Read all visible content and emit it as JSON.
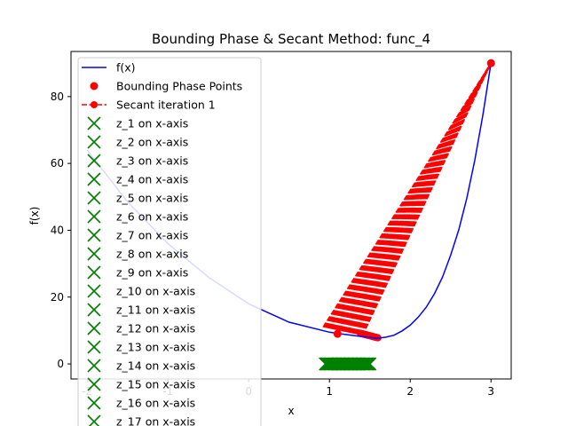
{
  "chart_data": {
    "type": "line",
    "title": "Bounding Phase & Secant Method: func_4",
    "xlabel": "x",
    "ylabel": "f(x)",
    "xlim": [
      -2.2,
      3.25
    ],
    "ylim": [
      -4.5,
      93.5
    ],
    "xticks": [
      -2,
      -1,
      0,
      1,
      2,
      3
    ],
    "yticks": [
      0,
      20,
      40,
      60,
      80
    ],
    "grid": false,
    "legend_position": "upper-left",
    "colors": {
      "function": "#0000ff",
      "bounding": "#ff0000",
      "secant": "#ff0000",
      "z": "#008000"
    },
    "series": [
      {
        "name": "f(x)",
        "kind": "curve",
        "x": [
          -2,
          -1.5,
          -1,
          -0.5,
          0,
          0.5,
          1,
          1.2,
          1.4,
          1.5,
          1.6,
          1.7,
          1.8,
          1.9,
          2.0,
          2.1,
          2.2,
          2.3,
          2.4,
          2.5,
          2.6,
          2.7,
          2.8,
          2.9,
          3.0
        ],
        "y": [
          64.0,
          48.5,
          36.0,
          26.0,
          18.0,
          12.5,
          9.5,
          8.8,
          8.2,
          7.9,
          7.7,
          8.0,
          8.6,
          9.9,
          11.6,
          14.0,
          17.0,
          21.0,
          26.0,
          32.5,
          40.0,
          49.5,
          61.0,
          74.5,
          90.0
        ]
      },
      {
        "name": "Bounding Phase Points",
        "kind": "points",
        "x": [
          1.1,
          3.0
        ],
        "y": [
          9.0,
          90.0
        ]
      },
      {
        "name": "Secant iteration 1",
        "kind": "secant",
        "anchor": {
          "x": 3.0,
          "y": 90.0
        },
        "iterations": 40,
        "x_start": [
          0.92,
          1.41
        ],
        "x_end": [
          1.38,
          1.6
        ],
        "y_start": [
          11.0,
          8.5
        ],
        "y_end": [
          9.2,
          7.8
        ]
      },
      {
        "name": "z markers",
        "kind": "x-markers",
        "x_range": [
          0.95,
          1.5
        ],
        "y": 0,
        "count": 40
      }
    ],
    "legend": [
      "f(x)",
      "Bounding Phase Points",
      "Secant iteration 1",
      "z_1 on x-axis",
      "z_2 on x-axis",
      "z_3 on x-axis",
      "z_4 on x-axis",
      "z_5 on x-axis",
      "z_6 on x-axis",
      "z_7 on x-axis",
      "z_8 on x-axis",
      "z_9 on x-axis",
      "z_10 on x-axis",
      "z_11 on x-axis",
      "z_12 on x-axis",
      "z_13 on x-axis",
      "z_14 on x-axis",
      "z_15 on x-axis",
      "z_16 on x-axis",
      "z_17 on x-axis"
    ]
  }
}
